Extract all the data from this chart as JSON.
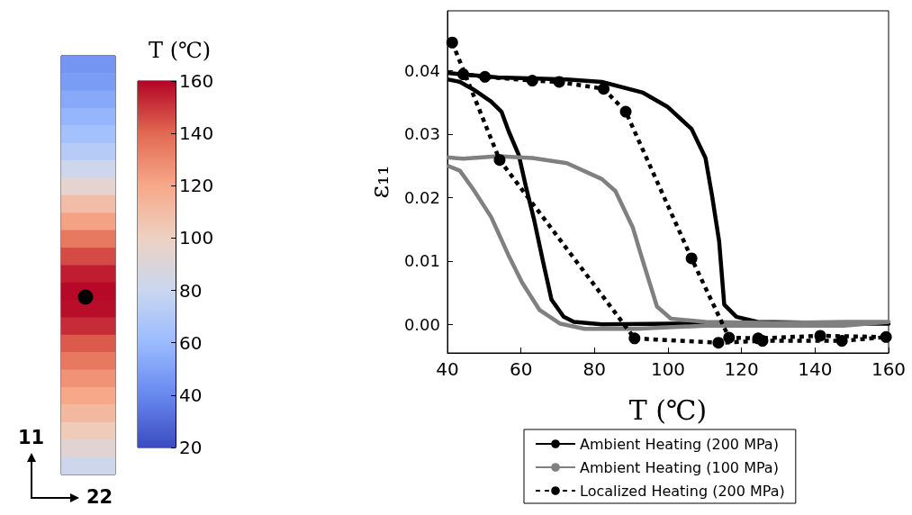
{
  "chart_data": [
    {
      "type": "heatmap",
      "clabel": "T (℃)",
      "categories": [
        null
      ],
      "y_categories": [
        null,
        null,
        null,
        null,
        null,
        null,
        null,
        null,
        null,
        null,
        null,
        null,
        null,
        null,
        null,
        null,
        null,
        null,
        null,
        null,
        null,
        null,
        null,
        null
      ],
      "cells": [
        [
          45
        ],
        [
          48
        ],
        [
          53
        ],
        [
          58
        ],
        [
          64
        ],
        [
          72
        ],
        [
          82
        ],
        [
          95
        ],
        [
          110
        ],
        [
          122
        ],
        [
          135
        ],
        [
          146
        ],
        [
          155
        ],
        [
          159
        ],
        [
          158
        ],
        [
          152
        ],
        [
          143
        ],
        [
          135
        ],
        [
          127
        ],
        [
          120
        ],
        [
          112
        ],
        [
          103
        ],
        [
          93
        ],
        [
          82
        ]
      ],
      "clim": [
        20,
        160
      ],
      "cticks": [
        20,
        40,
        60,
        80,
        100,
        120,
        140,
        160
      ],
      "annotations": [
        "11",
        "22"
      ]
    },
    {
      "type": "line",
      "xlabel": "T (℃)",
      "ylabel": "ε₁₁",
      "legend": "bottom",
      "xlim": [
        40,
        160
      ],
      "xticks": [
        40,
        60,
        80,
        100,
        120,
        140,
        160
      ],
      "ylim": [
        -0.0045,
        0.0494
      ],
      "yticks": [
        {
          "value": 0,
          "label": "0.00"
        },
        {
          "value": 0.01,
          "label": "0.01"
        },
        {
          "value": 0.02,
          "label": "0.02"
        },
        {
          "value": 0.03,
          "label": "0.03"
        },
        {
          "value": 0.04,
          "label": "0.04"
        }
      ],
      "series": [
        {
          "name": "Ambient Heating (200 MPa)",
          "color": "#000000",
          "line_style": "solid",
          "marker": "none",
          "x": [
            40,
            53.7,
            72.5,
            82,
            93.2,
            99.8,
            106.4,
            110.2,
            112,
            113.9,
            115.3,
            118.6,
            124.3,
            160,
            100.8,
            82,
            74.4,
            71.6,
            68.3,
            66,
            63.6,
            61.3,
            59.4,
            56.6,
            54.7,
            51.9,
            47.1,
            43.4,
            40
          ],
          "values": [
            0.0396,
            0.0389,
            0.0386,
            0.0382,
            0.0365,
            0.0343,
            0.0308,
            0.0262,
            0.0202,
            0.0131,
            0.0031,
            0.0012,
            0.0004,
            0.0001,
            0.0001,
            0,
            0.0004,
            0.0012,
            0.0039,
            0.0099,
            0.0164,
            0.0218,
            0.0267,
            0.0305,
            0.0335,
            0.0351,
            0.037,
            0.0382,
            0.0386
          ]
        },
        {
          "name": "Ambient Heating (100 MPa)",
          "color": "#808080",
          "line_style": "solid",
          "marker": "none",
          "x": [
            40,
            44.3,
            53.7,
            63.1,
            72.5,
            82,
            85.7,
            90.4,
            93.2,
            97,
            100.8,
            110.2,
            129,
            147.8,
            160,
            147.8,
            110.2,
            91.3,
            77.3,
            70.7,
            65,
            60.3,
            56.6,
            51.9,
            47.1,
            43.4,
            40
          ],
          "values": [
            0.0263,
            0.0261,
            0.0265,
            0.0262,
            0.0254,
            0.0229,
            0.021,
            0.0153,
            0.0099,
            0.0028,
            0.0009,
            0.0004,
            0.0002,
            0.0004,
            0.0004,
            -0.0002,
            -0.0002,
            -0.0007,
            -0.0007,
            0.0001,
            0.0023,
            0.0066,
            0.0109,
            0.0169,
            0.0212,
            0.0242,
            0.025
          ]
        },
        {
          "name": "Localized Heating (200 MPa)",
          "color": "#000000",
          "line_style": "dotted",
          "marker": "circle",
          "x": [
            41.3,
            54.2,
            90.9,
            113.7,
            125.7,
            147.3,
            159.3,
            141.4,
            124.5,
            116.6,
            106.4,
            88.5,
            82.5,
            70.4,
            63.1,
            50.2,
            44.3
          ],
          "values": [
            0.0444,
            0.0259,
            -0.0022,
            -0.0029,
            -0.0026,
            -0.0026,
            -0.002,
            -0.0018,
            -0.0022,
            -0.0021,
            0.0104,
            0.0335,
            0.0371,
            0.0382,
            0.0384,
            0.039,
            0.0394
          ]
        }
      ]
    }
  ]
}
